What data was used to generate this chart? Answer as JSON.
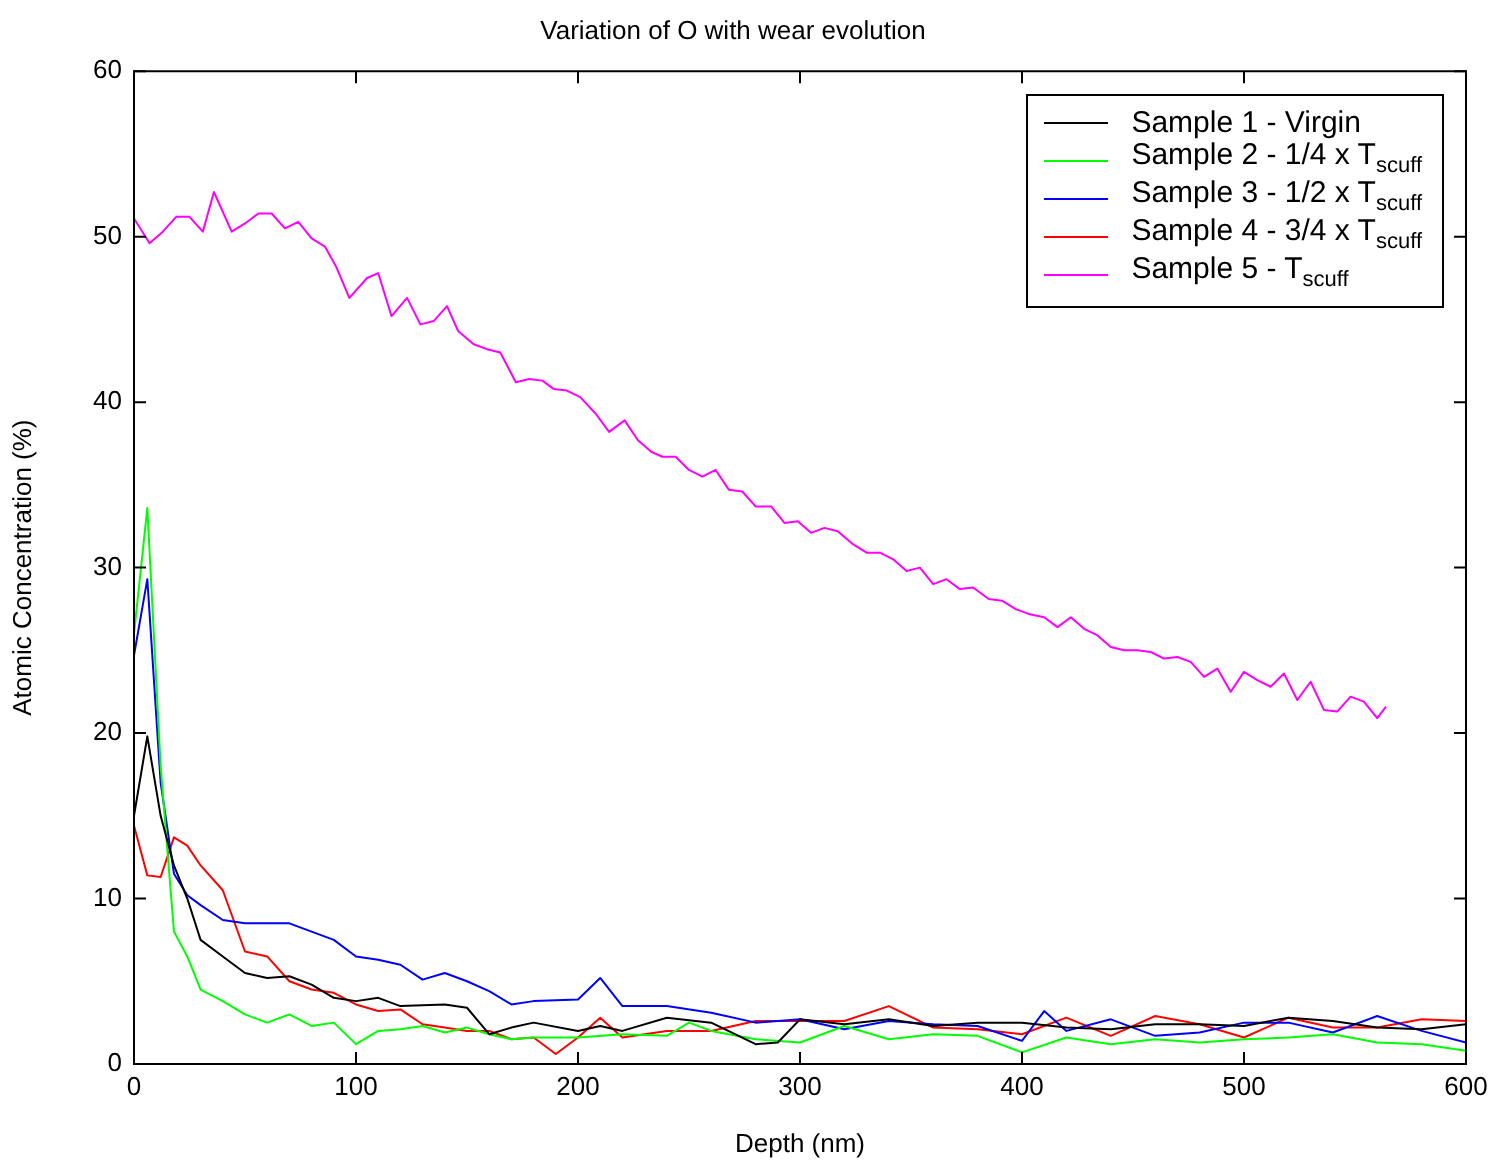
{
  "chart_data": {
    "type": "line",
    "title": "Variation of O with wear evolution",
    "xlabel": "Depth (nm)",
    "ylabel": "Atomic Concentration (%)",
    "xlim": [
      0,
      600
    ],
    "xticks": [
      0,
      100,
      200,
      300,
      400,
      500,
      600
    ],
    "ylim": [
      0,
      60
    ],
    "yticks": [
      0,
      10,
      20,
      30,
      40,
      50,
      60
    ],
    "grid": false,
    "legend": "top right",
    "marker": "none",
    "line_style": "solid",
    "series": [
      {
        "name": "Sample 1 - Virgin",
        "color": "#000000",
        "x": [
          0,
          6,
          12,
          18,
          24,
          30,
          40,
          50,
          60,
          70,
          80,
          90,
          100,
          110,
          120,
          140,
          150,
          160,
          170,
          180,
          200,
          210,
          220,
          240,
          260,
          280,
          290,
          300,
          320,
          340,
          360,
          380,
          400,
          420,
          440,
          460,
          480,
          500,
          520,
          540,
          560,
          580,
          600
        ],
        "values": [
          15,
          19.8,
          15,
          12,
          10,
          7.5,
          6.5,
          5.5,
          5.2,
          5.3,
          4.8,
          4,
          3.8,
          4,
          3.5,
          3.6,
          3.4,
          1.8,
          2.2,
          2.5,
          2,
          2.3,
          2,
          2.8,
          2.5,
          1.2,
          1.3,
          2.7,
          2.4,
          2.7,
          2.3,
          2.5,
          2.5,
          2.2,
          2.1,
          2.4,
          2.4,
          2.3,
          2.8,
          2.6,
          2.2,
          2.1,
          2.4
        ]
      },
      {
        "name": "Sample 2 - 1/4 x T$_{scuff}$",
        "color": "#00ff00",
        "x": [
          0,
          6,
          12,
          18,
          24,
          30,
          40,
          50,
          60,
          70,
          80,
          90,
          100,
          110,
          120,
          130,
          140,
          150,
          160,
          170,
          180,
          200,
          220,
          240,
          250,
          260,
          280,
          300,
          320,
          340,
          360,
          380,
          400,
          420,
          440,
          460,
          480,
          500,
          520,
          540,
          560,
          580,
          600
        ],
        "values": [
          26,
          33.6,
          18,
          8,
          6.5,
          4.5,
          3.8,
          3,
          2.5,
          3,
          2.3,
          2.5,
          1.2,
          2,
          2.1,
          2.3,
          1.9,
          2.2,
          1.8,
          1.5,
          1.6,
          1.6,
          1.8,
          1.7,
          2.5,
          2,
          1.5,
          1.3,
          2.3,
          1.5,
          1.8,
          1.7,
          0.7,
          1.6,
          1.2,
          1.5,
          1.3,
          1.5,
          1.6,
          1.8,
          1.3,
          1.2,
          0.8
        ]
      },
      {
        "name": "Sample 3 - 1/2 x T$_{scuff}$",
        "color": "#0000ff",
        "x": [
          0,
          6,
          12,
          18,
          24,
          30,
          40,
          50,
          60,
          70,
          80,
          90,
          100,
          110,
          120,
          130,
          140,
          150,
          160,
          170,
          180,
          200,
          210,
          220,
          240,
          260,
          280,
          290,
          300,
          320,
          340,
          360,
          380,
          400,
          410,
          420,
          440,
          460,
          480,
          500,
          520,
          540,
          560,
          580,
          600
        ],
        "values": [
          24.7,
          29.3,
          17,
          11.5,
          10.2,
          9.6,
          8.7,
          8.5,
          8.5,
          8.5,
          8,
          7.5,
          6.5,
          6.3,
          6,
          5.1,
          5.5,
          5,
          4.4,
          3.6,
          3.8,
          3.9,
          5.2,
          3.5,
          3.5,
          3.1,
          2.5,
          2.6,
          2.7,
          2.1,
          2.6,
          2.4,
          2.3,
          1.4,
          3.2,
          2,
          2.7,
          1.7,
          1.9,
          2.5,
          2.5,
          1.9,
          2.9,
          2,
          1.3
        ]
      },
      {
        "name": "Sample 4 - 3/4 x T$_{scuff}$",
        "color": "#ff0000",
        "x": [
          0,
          6,
          12,
          18,
          24,
          30,
          40,
          50,
          60,
          70,
          80,
          90,
          100,
          110,
          120,
          130,
          140,
          150,
          160,
          170,
          180,
          190,
          200,
          210,
          220,
          240,
          260,
          280,
          300,
          320,
          340,
          360,
          380,
          400,
          420,
          440,
          460,
          480,
          500,
          520,
          540,
          560,
          580,
          600
        ],
        "values": [
          14.4,
          11.4,
          11.3,
          13.7,
          13.2,
          12,
          10.5,
          6.8,
          6.5,
          5,
          4.5,
          4.3,
          3.6,
          3.2,
          3.3,
          2.4,
          2.2,
          2,
          2,
          1.5,
          1.6,
          0.6,
          1.6,
          2.8,
          1.6,
          2,
          2,
          2.6,
          2.6,
          2.6,
          3.5,
          2.2,
          2.1,
          1.8,
          2.8,
          1.7,
          2.9,
          2.4,
          1.6,
          2.8,
          2.2,
          2.2,
          2.7,
          2.6
        ]
      },
      {
        "name": "Sample 5 - T$_{scuff}$",
        "color": "#ff00ff",
        "x": [
          0,
          7,
          13,
          19,
          25,
          31,
          36,
          44,
          50,
          56,
          62,
          68,
          74,
          80,
          86,
          91,
          97,
          105,
          110,
          116,
          123,
          129,
          135,
          141,
          146,
          153,
          159,
          165,
          172,
          178,
          184,
          189,
          195,
          201,
          208,
          214,
          221,
          227,
          233,
          238,
          244,
          250,
          256,
          262,
          268,
          274,
          280,
          287,
          293,
          299,
          305,
          311,
          317,
          324,
          330,
          336,
          342,
          348,
          354,
          360,
          366,
          372,
          378,
          385,
          391,
          397,
          403,
          410,
          416,
          422,
          428,
          434,
          440,
          446,
          452,
          458,
          464,
          470,
          476,
          482,
          488,
          494,
          500,
          506,
          512,
          518,
          524,
          530,
          536,
          542,
          548,
          554,
          560,
          564
        ],
        "values": [
          51.1,
          49.6,
          50.3,
          51.2,
          51.2,
          50.3,
          52.7,
          50.3,
          50.8,
          51.4,
          51.4,
          50.5,
          50.9,
          49.9,
          49.4,
          48.2,
          46.3,
          47.5,
          47.8,
          45.2,
          46.3,
          44.7,
          44.9,
          45.8,
          44.3,
          43.5,
          43.2,
          43,
          41.2,
          41.4,
          41.3,
          40.8,
          40.7,
          40.3,
          39.3,
          38.2,
          38.9,
          37.7,
          37,
          36.7,
          36.7,
          35.9,
          35.5,
          35.9,
          34.7,
          34.6,
          33.7,
          33.7,
          32.7,
          32.8,
          32.1,
          32.4,
          32.2,
          31.4,
          30.9,
          30.9,
          30.5,
          29.8,
          30,
          29,
          29.3,
          28.7,
          28.8,
          28.1,
          28,
          27.5,
          27.2,
          27,
          26.4,
          27,
          26.3,
          25.9,
          25.2,
          25,
          25,
          24.9,
          24.5,
          24.6,
          24.3,
          23.4,
          23.9,
          22.5,
          23.7,
          23.2,
          22.8,
          23.6,
          22,
          23.1,
          21.4,
          21.3,
          22.2,
          21.9,
          20.9,
          21.6
        ]
      }
    ]
  }
}
